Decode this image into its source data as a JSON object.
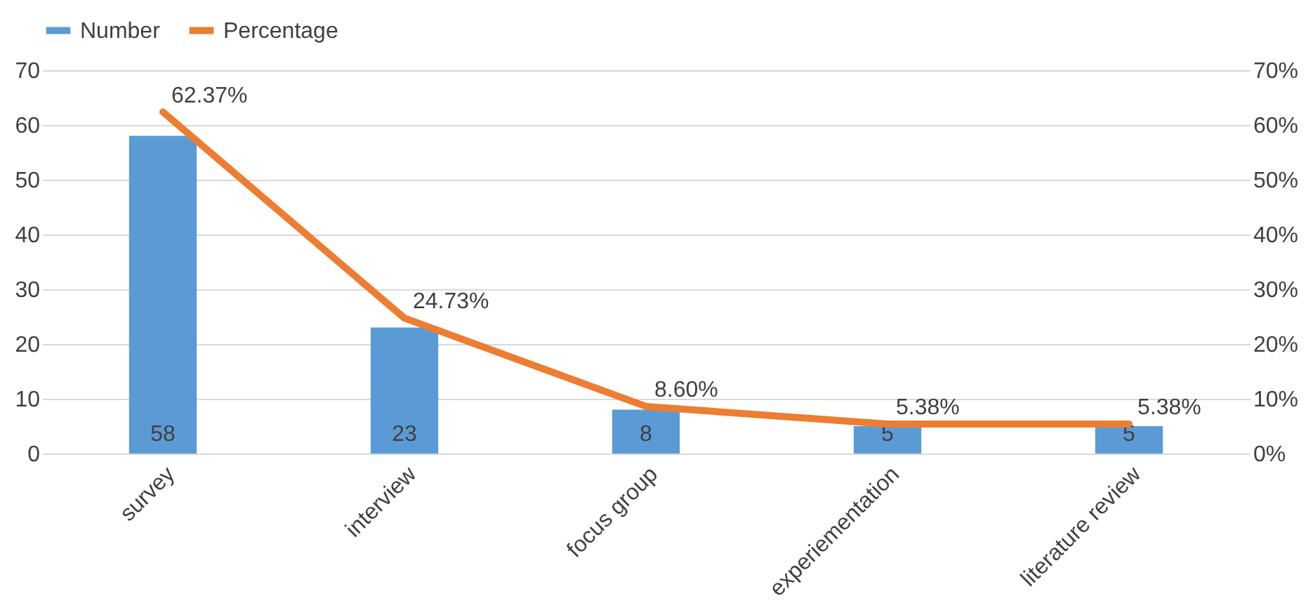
{
  "chart_data": {
    "type": "bar",
    "categories": [
      "survey",
      "interview",
      "focus group",
      "experiementation",
      "literature review"
    ],
    "series": [
      {
        "name": "Number",
        "type": "bar",
        "color": "#5b9bd5",
        "values": [
          58,
          23,
          8,
          5,
          5
        ]
      },
      {
        "name": "Percentage",
        "type": "line",
        "axis": "y2",
        "color": "#ed7d31",
        "values": [
          62.37,
          24.73,
          8.6,
          5.38,
          5.38
        ],
        "value_labels": [
          "62.37%",
          "24.73%",
          "8.60%",
          "5.38%",
          "5.38%"
        ]
      }
    ],
    "data_labels": true,
    "ylim": [
      0,
      70
    ],
    "yticks": [
      0,
      10,
      20,
      30,
      40,
      50,
      60,
      70
    ],
    "y2lim": [
      0,
      70
    ],
    "y2ticks": [
      {
        "value": 0,
        "label": "0%"
      },
      {
        "value": 10,
        "label": "10%"
      },
      {
        "value": 20,
        "label": "20%"
      },
      {
        "value": 30,
        "label": "30%"
      },
      {
        "value": 40,
        "label": "40%"
      },
      {
        "value": 50,
        "label": "50%"
      },
      {
        "value": 60,
        "label": "60%"
      },
      {
        "value": 70,
        "label": "70%"
      }
    ],
    "grid": "y",
    "legend": "top",
    "marker": "none",
    "line_style": "solid"
  }
}
